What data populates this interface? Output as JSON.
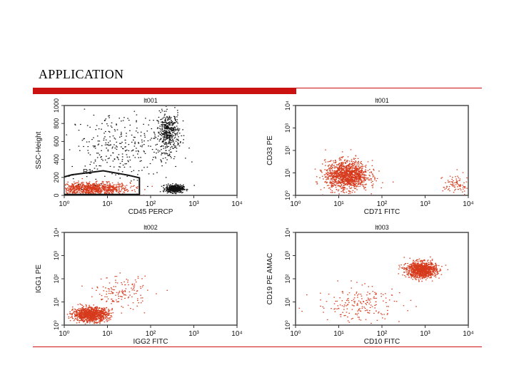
{
  "slide": {
    "title": "APPLICATION"
  },
  "colors": {
    "accent": "#cc1111",
    "cells_red": "#d63a1c",
    "cells_black": "#111111"
  },
  "chart_data": [
    {
      "type": "scatter",
      "title": "lt001",
      "xlabel": "CD45 PERCP",
      "ylabel": "SSC-Height",
      "x_scale": "log",
      "x_ticks": [
        "10⁰",
        "10¹",
        "10²",
        "10³",
        "10⁴"
      ],
      "y_scale": "linear",
      "y_ticks": [
        "0",
        "200",
        "400",
        "600",
        "800",
        "1000"
      ],
      "xlim": [
        1,
        10000
      ],
      "ylim": [
        0,
        1023
      ],
      "gate": {
        "label": "R1",
        "polygon": [
          [
            1,
            210
          ],
          [
            1.5,
            235
          ],
          [
            8,
            280
          ],
          [
            30,
            230
          ],
          [
            55,
            200
          ],
          [
            55,
            10
          ],
          [
            1,
            10
          ]
        ]
      },
      "series": [
        {
          "color": "#d63a1c",
          "clusters": [
            {
              "x": 4,
              "y": 80,
              "sx": 0.45,
              "sy": 35,
              "n": 900
            }
          ]
        },
        {
          "color": "#111111",
          "clusters": [
            {
              "x": 250,
              "y": 720,
              "sx": 0.13,
              "sy": 110,
              "n": 420
            },
            {
              "x": 350,
              "y": 80,
              "sx": 0.1,
              "sy": 22,
              "n": 450
            },
            {
              "x": 20,
              "y": 550,
              "sx": 0.6,
              "sy": 200,
              "n": 320
            }
          ]
        }
      ]
    },
    {
      "type": "scatter",
      "title": "lt001",
      "xlabel": "CD71 FITC",
      "ylabel": "CD33 PE",
      "x_scale": "log",
      "x_ticks": [
        "10⁰",
        "10¹",
        "10²",
        "10³",
        "10⁴"
      ],
      "y_scale": "log",
      "y_ticks": [
        "10⁰",
        "10¹",
        "10²",
        "10³",
        "10⁴"
      ],
      "xlim": [
        1,
        10000
      ],
      "ylim": [
        1,
        10000
      ],
      "series": [
        {
          "color": "#d63a1c",
          "clusters": [
            {
              "x": 15,
              "y": 8,
              "sx": 0.25,
              "sy": 0.32,
              "n": 1300
            },
            {
              "x": 5000,
              "y": 3,
              "sx": 0.15,
              "sy": 0.25,
              "n": 90
            }
          ]
        }
      ]
    },
    {
      "type": "scatter",
      "title": "lt002",
      "xlabel": "IGG2 FITC",
      "ylabel": "IGG1 PE",
      "x_scale": "log",
      "x_ticks": [
        "10⁰",
        "10¹",
        "10²",
        "10³",
        "10⁴"
      ],
      "y_scale": "log",
      "y_ticks": [
        "10⁰",
        "10¹",
        "10²",
        "10³",
        "10⁴"
      ],
      "xlim": [
        1,
        10000
      ],
      "ylim": [
        1,
        10000
      ],
      "series": [
        {
          "color": "#d63a1c",
          "clusters": [
            {
              "x": 4,
              "y": 3,
              "sx": 0.2,
              "sy": 0.15,
              "n": 1100
            },
            {
              "x": 20,
              "y": 25,
              "sx": 0.3,
              "sy": 0.35,
              "n": 150
            }
          ]
        }
      ]
    },
    {
      "type": "scatter",
      "title": "lt003",
      "xlabel": "CD10 FITC",
      "ylabel": "CD19 PE AMAC",
      "x_scale": "log",
      "x_ticks": [
        "10⁰",
        "10¹",
        "10²",
        "10³",
        "10⁴"
      ],
      "y_scale": "log",
      "y_ticks": [
        "10⁰",
        "10¹",
        "10²",
        "10³",
        "10⁴"
      ],
      "xlim": [
        1,
        10000
      ],
      "ylim": [
        1,
        10000
      ],
      "series": [
        {
          "color": "#d63a1c",
          "clusters": [
            {
              "x": 800,
              "y": 250,
              "sx": 0.17,
              "sy": 0.17,
              "n": 1100
            },
            {
              "x": 30,
              "y": 8,
              "sx": 0.5,
              "sy": 0.4,
              "n": 200
            }
          ]
        }
      ]
    }
  ]
}
